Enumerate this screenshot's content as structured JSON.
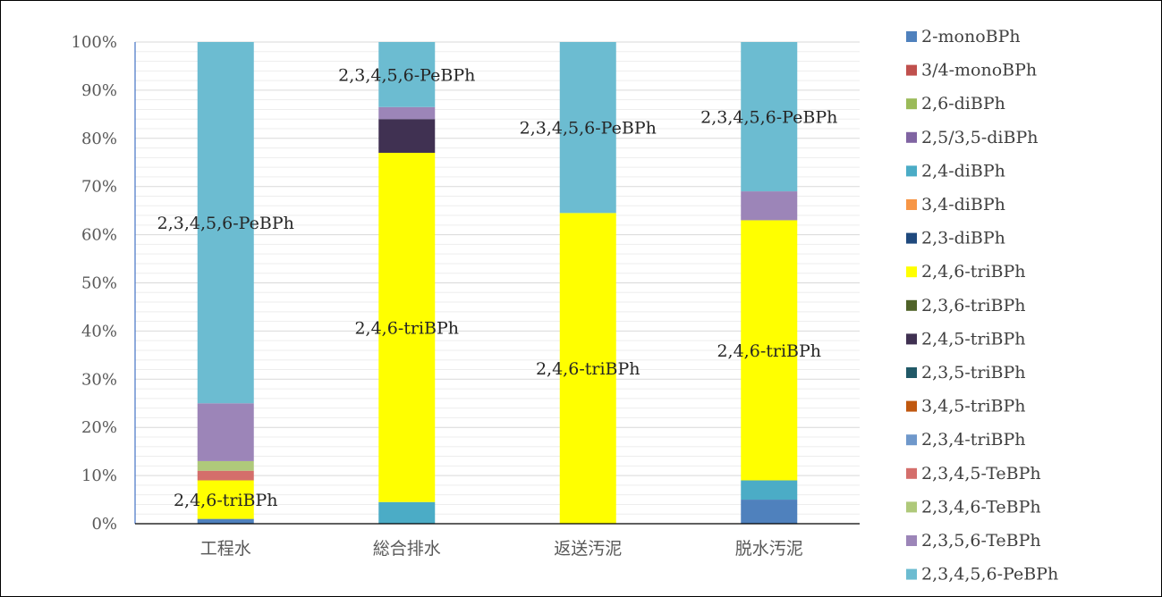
{
  "chart_data": {
    "type": "bar",
    "stacked": true,
    "normalized": true,
    "categories": [
      "工程水",
      "総合排水",
      "返送汚泥",
      "脱水汚泥"
    ],
    "ylim": [
      0,
      100
    ],
    "yticks": [
      "0%",
      "10%",
      "20%",
      "30%",
      "40%",
      "50%",
      "60%",
      "70%",
      "80%",
      "90%",
      "100%"
    ],
    "grid": true,
    "legend_position": "right",
    "series": [
      {
        "name": "2-monoBPh",
        "color": "#4F81BD",
        "values": [
          1.0,
          0,
          0,
          5.0
        ]
      },
      {
        "name": "3/4-monoBPh",
        "color": "#C0504D",
        "values": [
          0,
          0,
          0,
          0
        ]
      },
      {
        "name": "2,6-diBPh",
        "color": "#9BBB59",
        "values": [
          0,
          0,
          0,
          0
        ]
      },
      {
        "name": "2,5/3,5-diBPh",
        "color": "#8064A2",
        "values": [
          0,
          0,
          0,
          0
        ]
      },
      {
        "name": "2,4-diBPh",
        "color": "#4BACC6",
        "values": [
          0,
          4.5,
          0,
          4.0
        ]
      },
      {
        "name": "3,4-diBPh",
        "color": "#F79646",
        "values": [
          0,
          0,
          0,
          0
        ]
      },
      {
        "name": "2,3-diBPh",
        "color": "#1F497D",
        "values": [
          0,
          0,
          0,
          0
        ]
      },
      {
        "name": "2,4,6-triBPh",
        "color": "#FFFF00",
        "values": [
          8.0,
          72.5,
          64.5,
          54.0
        ]
      },
      {
        "name": "2,3,6-triBPh",
        "color": "#4F6228",
        "values": [
          0,
          0,
          0,
          0
        ]
      },
      {
        "name": "2,4,5-triBPh",
        "color": "#403152",
        "values": [
          0,
          7.0,
          0,
          0
        ]
      },
      {
        "name": "2,3,5-triBPh",
        "color": "#215967",
        "values": [
          0,
          0,
          0,
          0
        ]
      },
      {
        "name": "3,4,5-triBPh",
        "color": "#C0580F",
        "values": [
          0,
          0,
          0,
          0
        ]
      },
      {
        "name": "2,3,4-triBPh",
        "color": "#6F98CB",
        "values": [
          0,
          0,
          0,
          0
        ]
      },
      {
        "name": "2,3,4,5-TeBPh",
        "color": "#D46E6B",
        "values": [
          2.0,
          0,
          0,
          0
        ]
      },
      {
        "name": "2,3,4,6-TeBPh",
        "color": "#AFC97A",
        "values": [
          2.0,
          0,
          0,
          0
        ]
      },
      {
        "name": "2,3,5,6-TeBPh",
        "color": "#9C85B8",
        "values": [
          12.0,
          2.5,
          0,
          6.0
        ]
      },
      {
        "name": "2,3,4,5,6-PeBPh",
        "color": "#6CBCD1",
        "values": [
          75.0,
          13.5,
          35.5,
          31.0
        ]
      }
    ],
    "data_labels": [
      {
        "category": "工程水",
        "series": "2,4,6-triBPh",
        "text": "2,4,6-triBPh"
      },
      {
        "category": "工程水",
        "series": "2,3,4,5,6-PeBPh",
        "text": "2,3,4,5,6-PeBPh"
      },
      {
        "category": "総合排水",
        "series": "2,4,6-triBPh",
        "text": "2,4,6-triBPh"
      },
      {
        "category": "総合排水",
        "series": "2,3,4,5,6-PeBPh",
        "text": "2,3,4,5,6-PeBPh"
      },
      {
        "category": "返送汚泥",
        "series": "2,4,6-triBPh",
        "text": "2,4,6-triBPh"
      },
      {
        "category": "返送汚泥",
        "series": "2,3,4,5,6-PeBPh",
        "text": "2,3,4,5,6-PeBPh"
      },
      {
        "category": "脱水汚泥",
        "series": "2,4,6-triBPh",
        "text": "2,4,6-triBPh"
      },
      {
        "category": "脱水汚泥",
        "series": "2,3,4,5,6-PeBPh",
        "text": "2,3,4,5,6-PeBPh"
      }
    ]
  }
}
